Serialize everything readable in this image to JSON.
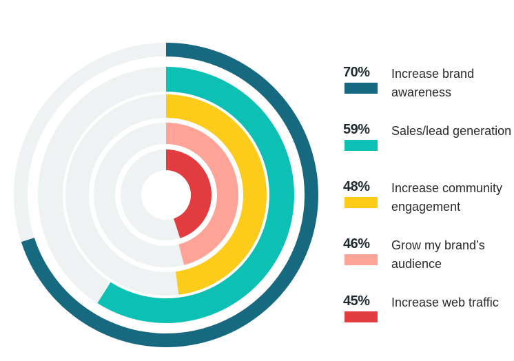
{
  "chart_data": {
    "type": "radial-bar",
    "max": 100,
    "track_color": "#eff2f3",
    "series": [
      {
        "name": "Increase brand awareness",
        "value": 70,
        "label": "70%",
        "text": "Increase brand awareness",
        "color": "#16697f"
      },
      {
        "name": "Sales/lead generation",
        "value": 59,
        "label": "59%",
        "text": "Sales/lead generation",
        "color": "#0cc0b4"
      },
      {
        "name": "Increase community engagement",
        "value": 48,
        "label": "48%",
        "text": "Increase community engagement",
        "color": "#fdcb1a"
      },
      {
        "name": "Grow my brand’s audience",
        "value": 46,
        "label": "46%",
        "text": "Grow my brand’s audience",
        "color": "#fea397"
      },
      {
        "name": "Increase web traffic",
        "value": 45,
        "label": "45%",
        "text": "Increase web traffic",
        "color": "#e13c3f"
      }
    ]
  }
}
